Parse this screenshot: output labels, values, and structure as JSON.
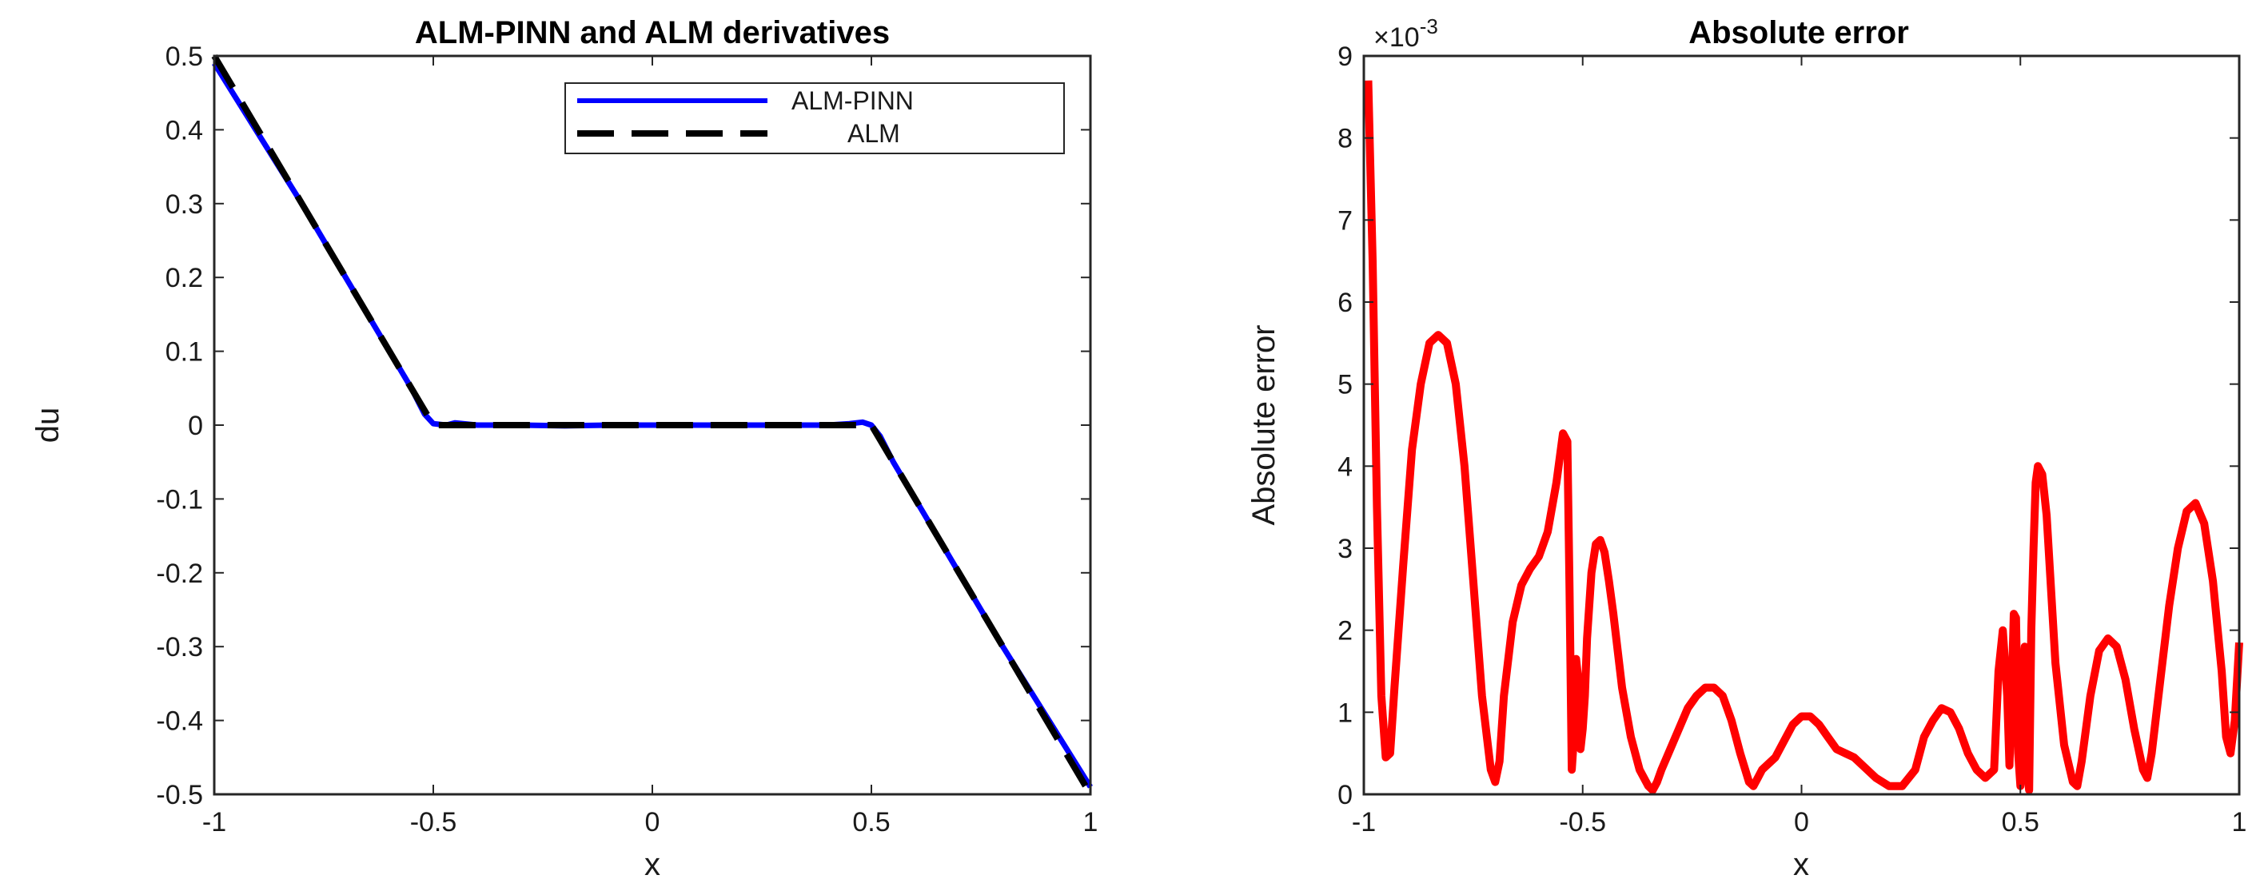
{
  "chart_data": [
    {
      "type": "line",
      "title": "ALM-PINN and ALM derivatives",
      "xlabel": "x",
      "ylabel": "du",
      "xlim": [
        -1,
        1
      ],
      "ylim": [
        -0.5,
        0.5
      ],
      "xticks": [
        "-1",
        "-0.5",
        "0",
        "0.5",
        "1"
      ],
      "yticks": [
        "-0.5",
        "-0.4",
        "-0.3",
        "-0.2",
        "-0.1",
        "0",
        "0.1",
        "0.2",
        "0.3",
        "0.4",
        "0.5"
      ],
      "grid": false,
      "legend_position": "top-right",
      "series": [
        {
          "name": "ALM-PINN",
          "color": "#0000ff",
          "style": "solid",
          "x": [
            -1,
            -0.9,
            -0.8,
            -0.7,
            -0.6,
            -0.55,
            -0.52,
            -0.5,
            -0.47,
            -0.45,
            -0.4,
            -0.3,
            -0.2,
            -0.1,
            0,
            0.1,
            0.2,
            0.3,
            0.4,
            0.45,
            0.48,
            0.5,
            0.52,
            0.55,
            0.6,
            0.7,
            0.8,
            0.9,
            1
          ],
          "y": [
            0.49,
            0.395,
            0.3,
            0.2,
            0.1,
            0.05,
            0.015,
            0.002,
            0.0,
            0.003,
            0.0,
            0.0,
            -0.001,
            0.0,
            0.0,
            0.0,
            0.0,
            0.0,
            0.0,
            0.002,
            0.004,
            0.0,
            -0.015,
            -0.05,
            -0.1,
            -0.2,
            -0.3,
            -0.395,
            -0.49
          ]
        },
        {
          "name": "ALM",
          "color": "#000000",
          "style": "dashed",
          "x": [
            -1,
            -0.5,
            0.5,
            1
          ],
          "y": [
            0.5,
            0,
            0,
            -0.5
          ]
        }
      ]
    },
    {
      "type": "line",
      "title": "Absolute error",
      "xlabel": "x",
      "ylabel": "Absolute error",
      "exponent_label": "×10",
      "exponent_power": "-3",
      "xlim": [
        -1,
        1
      ],
      "ylim": [
        0,
        9
      ],
      "y_scale_factor": 0.001,
      "xticks": [
        "-1",
        "-0.5",
        "0",
        "0.5",
        "1"
      ],
      "yticks": [
        "0",
        "1",
        "2",
        "3",
        "4",
        "5",
        "6",
        "7",
        "8",
        "9"
      ],
      "grid": false,
      "series": [
        {
          "color": "#ff0000",
          "style": "solid",
          "x": [
            -0.99,
            -0.98,
            -0.97,
            -0.96,
            -0.95,
            -0.94,
            -0.93,
            -0.91,
            -0.89,
            -0.87,
            -0.85,
            -0.83,
            -0.81,
            -0.79,
            -0.77,
            -0.75,
            -0.73,
            -0.71,
            -0.7,
            -0.69,
            -0.68,
            -0.66,
            -0.64,
            -0.62,
            -0.6,
            -0.58,
            -0.56,
            -0.545,
            -0.535,
            -0.53,
            -0.525,
            -0.52,
            -0.515,
            -0.51,
            -0.505,
            -0.5,
            -0.495,
            -0.49,
            -0.48,
            -0.47,
            -0.46,
            -0.45,
            -0.44,
            -0.43,
            -0.41,
            -0.39,
            -0.37,
            -0.35,
            -0.34,
            -0.33,
            -0.32,
            -0.3,
            -0.28,
            -0.26,
            -0.24,
            -0.22,
            -0.2,
            -0.18,
            -0.16,
            -0.14,
            -0.12,
            -0.11,
            -0.1,
            -0.09,
            -0.08,
            -0.06,
            -0.04,
            -0.02,
            0.0,
            0.02,
            0.04,
            0.06,
            0.08,
            0.1,
            0.12,
            0.14,
            0.17,
            0.2,
            0.23,
            0.26,
            0.27,
            0.28,
            0.3,
            0.32,
            0.34,
            0.36,
            0.38,
            0.4,
            0.42,
            0.44,
            0.45,
            0.46,
            0.47,
            0.475,
            0.48,
            0.485,
            0.49,
            0.495,
            0.5,
            0.505,
            0.51,
            0.515,
            0.52,
            0.525,
            0.53,
            0.535,
            0.54,
            0.55,
            0.56,
            0.57,
            0.58,
            0.6,
            0.62,
            0.63,
            0.64,
            0.66,
            0.68,
            0.7,
            0.72,
            0.74,
            0.76,
            0.78,
            0.79,
            0.8,
            0.82,
            0.84,
            0.86,
            0.88,
            0.9,
            0.92,
            0.94,
            0.96,
            0.97,
            0.98,
            0.99,
            1.0
          ],
          "y": [
            8.7,
            6.5,
            3.5,
            1.2,
            0.45,
            0.5,
            1.3,
            2.8,
            4.2,
            5.0,
            5.5,
            5.6,
            5.5,
            5.0,
            4.0,
            2.6,
            1.2,
            0.3,
            0.15,
            0.4,
            1.2,
            2.1,
            2.55,
            2.75,
            2.9,
            3.2,
            3.8,
            4.4,
            4.3,
            2.5,
            0.3,
            0.7,
            1.65,
            1.4,
            0.55,
            0.8,
            1.2,
            1.9,
            2.7,
            3.05,
            3.1,
            2.95,
            2.6,
            2.2,
            1.3,
            0.7,
            0.3,
            0.1,
            0.05,
            0.15,
            0.3,
            0.55,
            0.8,
            1.05,
            1.2,
            1.3,
            1.3,
            1.2,
            0.9,
            0.5,
            0.15,
            0.1,
            0.2,
            0.3,
            0.35,
            0.45,
            0.65,
            0.85,
            0.95,
            0.95,
            0.85,
            0.7,
            0.55,
            0.5,
            0.45,
            0.35,
            0.2,
            0.1,
            0.1,
            0.3,
            0.5,
            0.7,
            0.9,
            1.05,
            1.0,
            0.8,
            0.5,
            0.3,
            0.2,
            0.3,
            1.5,
            2.0,
            1.2,
            0.35,
            1.2,
            2.2,
            2.15,
            0.5,
            0.1,
            1.5,
            1.8,
            0.3,
            0.05,
            2.0,
            3.0,
            3.8,
            4.0,
            3.9,
            3.4,
            2.5,
            1.6,
            0.6,
            0.15,
            0.1,
            0.4,
            1.2,
            1.75,
            1.9,
            1.8,
            1.4,
            0.8,
            0.3,
            0.2,
            0.5,
            1.4,
            2.3,
            3.0,
            3.45,
            3.55,
            3.3,
            2.6,
            1.5,
            0.7,
            0.5,
            0.9,
            1.85
          ]
        }
      ]
    }
  ]
}
